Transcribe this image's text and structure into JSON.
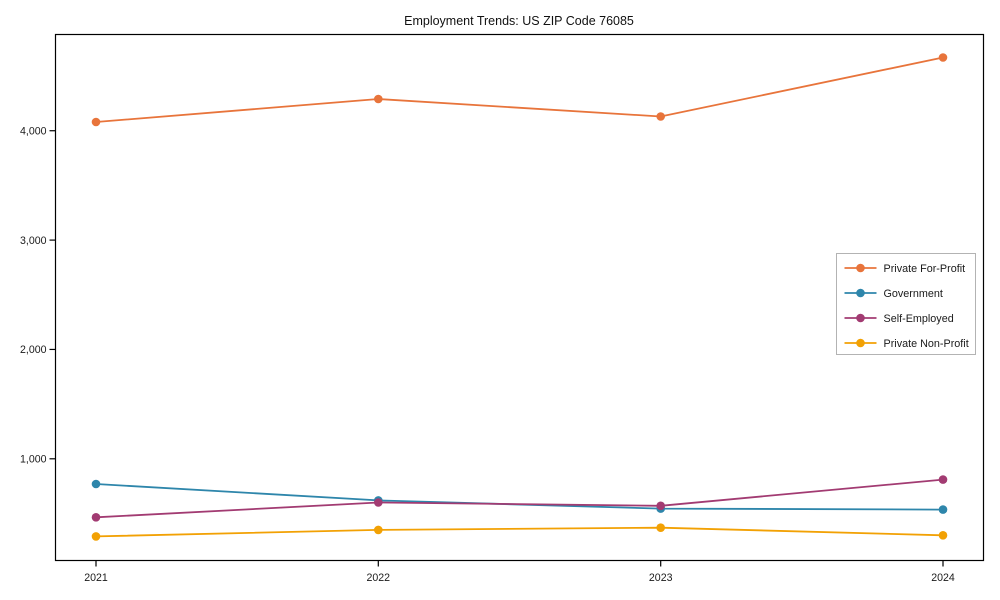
{
  "window": {
    "background": "#ffffff"
  },
  "chart_data": {
    "type": "line",
    "title": "Employment Trends: US ZIP Code 76085",
    "xlabel": "",
    "ylabel": "",
    "x_categories": [
      "2021",
      "2022",
      "2023",
      "2024"
    ],
    "series": [
      {
        "name": "Private For-Profit",
        "color": "#E8743B",
        "values": [
          4080,
          4290,
          4130,
          4670
        ]
      },
      {
        "name": "Government",
        "color": "#2E86AB",
        "values": [
          770,
          620,
          545,
          535
        ]
      },
      {
        "name": "Self-Employed",
        "color": "#A23B72",
        "values": [
          465,
          600,
          570,
          810
        ]
      },
      {
        "name": "Private Non-Profit",
        "color": "#F2A104",
        "values": [
          290,
          350,
          370,
          300
        ]
      }
    ],
    "y_ticks": [
      {
        "value": 1000,
        "label": "1,000"
      },
      {
        "value": 2000,
        "label": "2,000"
      },
      {
        "value": 3000,
        "label": "3,000"
      },
      {
        "value": 4000,
        "label": "4,000"
      }
    ],
    "ylim": [
      70,
      4880
    ],
    "grid": false,
    "legend_position": "center-right",
    "marker": "circle"
  },
  "styles": {
    "axis_color": "#000000",
    "text_color": "#1a1a1a",
    "legend_border": "#b3b3b3",
    "legend_background": "#ffffff"
  }
}
